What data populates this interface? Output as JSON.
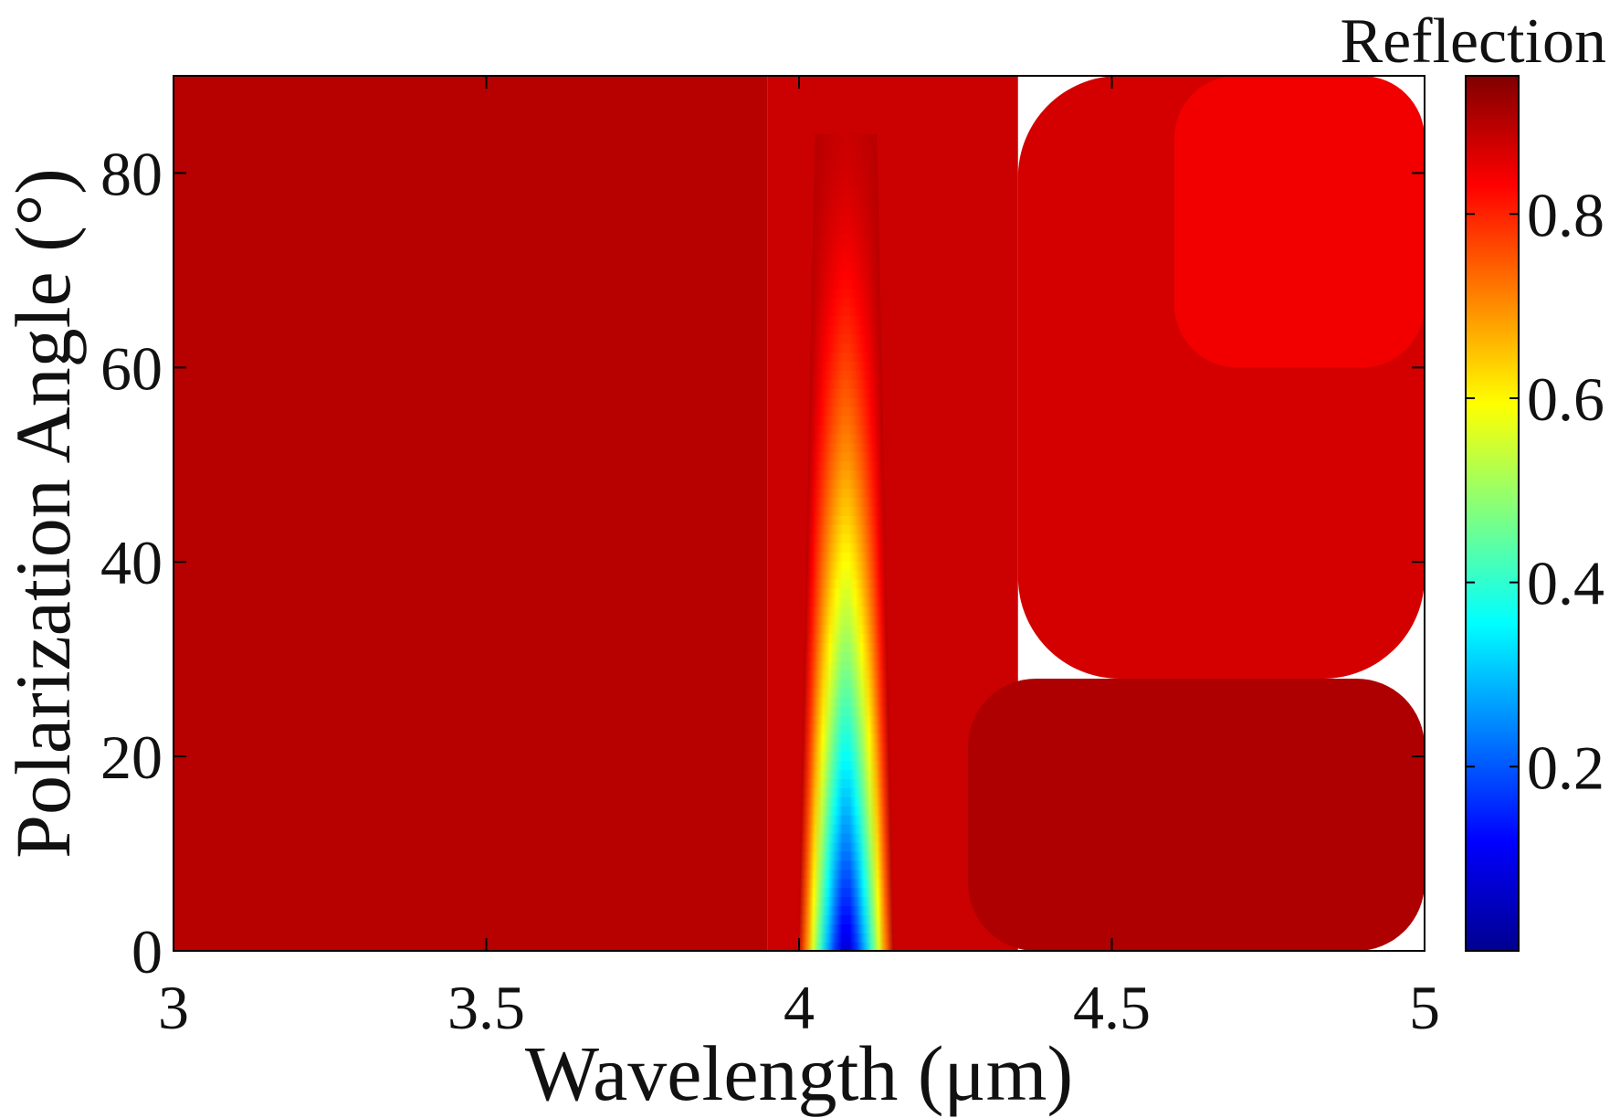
{
  "chart_data": {
    "type": "heatmap",
    "title": "",
    "xlabel": "Wavelength (μm)",
    "ylabel": "Polarization Angle (°)",
    "xlim": [
      3,
      5
    ],
    "ylim": [
      0,
      90
    ],
    "x_ticks": [
      "3",
      "3.5",
      "4",
      "4.5",
      "5"
    ],
    "y_ticks": [
      "0",
      "20",
      "40",
      "60",
      "80"
    ],
    "colorbar": {
      "label": "Reflection",
      "range": [
        0,
        0.95
      ],
      "ticks": [
        "0.2",
        "0.4",
        "0.6",
        "0.8"
      ],
      "colormap": "jet"
    },
    "regions": [
      {
        "description": "baseline reflection, short wavelengths",
        "x_range": [
          3,
          3.95
        ],
        "y_range": [
          0,
          90
        ],
        "value": 0.94
      },
      {
        "description": "slightly lower band around resonance",
        "x_range": [
          3.95,
          4.35
        ],
        "y_range": [
          0,
          90
        ],
        "value": 0.92
      },
      {
        "description": "low-angle region at long wavelengths",
        "x_range": [
          4.27,
          5
        ],
        "y_range": [
          0,
          28
        ],
        "value": 0.95
      },
      {
        "description": "upper-right region",
        "x_range": [
          4.35,
          5
        ],
        "y_range": [
          28,
          90
        ],
        "value": 0.91
      },
      {
        "description": "top-right corner",
        "x_range": [
          4.6,
          5
        ],
        "y_range": [
          60,
          90
        ],
        "value": 0.88
      }
    ],
    "resonance": {
      "center_wavelength": 4.075,
      "min_value": 0.02,
      "min_at_angle": 0,
      "fades_out_by_angle": 84,
      "description": "narrow absorption dip near 4.07 μm, deepest at 0°, weakening with increasing polarization angle"
    }
  }
}
